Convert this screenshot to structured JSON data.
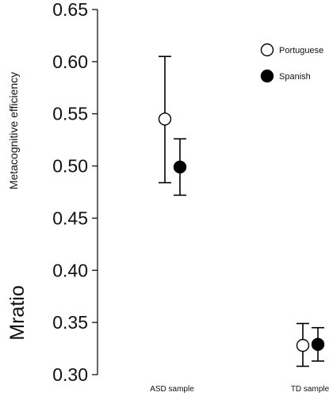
{
  "chart_data": {
    "type": "scatter",
    "title": "",
    "ylabel": "Mratio",
    "ylabel_sub": "Metacognitive efficiency",
    "xlabel": "",
    "ylim": [
      0.3,
      0.65
    ],
    "yticks": [
      "0.65",
      "0.60",
      "0.55",
      "0.50",
      "0.45",
      "0.40",
      "0.35",
      "0.30"
    ],
    "ytick_values": [
      0.65,
      0.6,
      0.55,
      0.5,
      0.45,
      0.4,
      0.35,
      0.3
    ],
    "categories": [
      "ASD sample",
      "TD sample"
    ],
    "legend_position": "top-right",
    "series": [
      {
        "name": "Portuguese",
        "marker": "open-circle",
        "color": "#ffffff",
        "stroke": "#000000",
        "values": [
          0.545,
          0.328
        ],
        "error_low": [
          0.484,
          0.308
        ],
        "error_high": [
          0.605,
          0.349
        ]
      },
      {
        "name": "Spanish",
        "marker": "filled-circle",
        "color": "#000000",
        "stroke": "#000000",
        "values": [
          0.499,
          0.329
        ],
        "error_low": [
          0.472,
          0.313
        ],
        "error_high": [
          0.526,
          0.345
        ]
      }
    ]
  }
}
